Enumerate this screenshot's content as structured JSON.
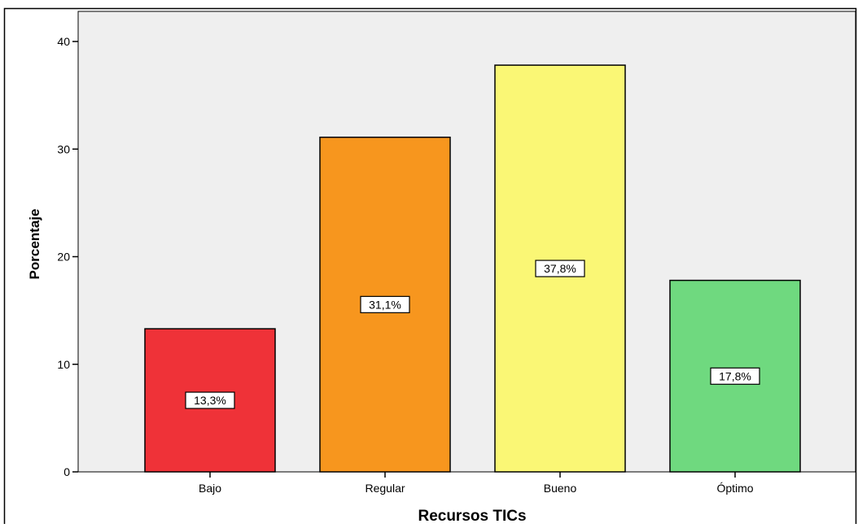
{
  "chart_data": {
    "type": "bar",
    "title": "",
    "xlabel": "Recursos TICs",
    "ylabel": "Porcentaje",
    "categories": [
      "Bajo",
      "Regular",
      "Bueno",
      "Óptimo"
    ],
    "values": [
      13.3,
      31.1,
      37.8,
      17.8
    ],
    "value_labels": [
      "13,3%",
      "31,1%",
      "37,8%",
      "17,8%"
    ],
    "colors": [
      "#ef3238",
      "#f7961e",
      "#faf775",
      "#6fd97f"
    ],
    "ylim": [
      0,
      40
    ],
    "yticks": [
      0,
      10,
      20,
      30,
      40
    ],
    "plot_background": "#efefef",
    "grid": false,
    "legend": "none"
  }
}
